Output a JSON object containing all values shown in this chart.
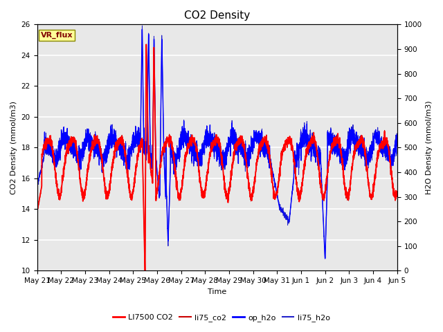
{
  "title": "CO2 Density",
  "xlabel": "Time",
  "ylabel_left": "CO2 Density (mmol/m3)",
  "ylabel_right": "H2O Density (mmol/m3)",
  "ylim_left": [
    10,
    26
  ],
  "ylim_right": [
    0,
    1000
  ],
  "yticks_left": [
    10,
    12,
    14,
    16,
    18,
    20,
    22,
    24,
    26
  ],
  "yticks_right": [
    0,
    100,
    200,
    300,
    400,
    500,
    600,
    700,
    800,
    900,
    1000
  ],
  "plot_bg_color": "#e8e8e8",
  "grid_color": "white",
  "legend_entries": [
    "LI7500 CO2",
    "li75_co2",
    "op_h2o",
    "li75_h2o"
  ],
  "vr_flux_box_color": "#ffff99",
  "vr_flux_text_color": "#800000",
  "title_fontsize": 11,
  "axis_label_fontsize": 8,
  "tick_fontsize": 7.5,
  "n_points": 3000,
  "seed": 42
}
